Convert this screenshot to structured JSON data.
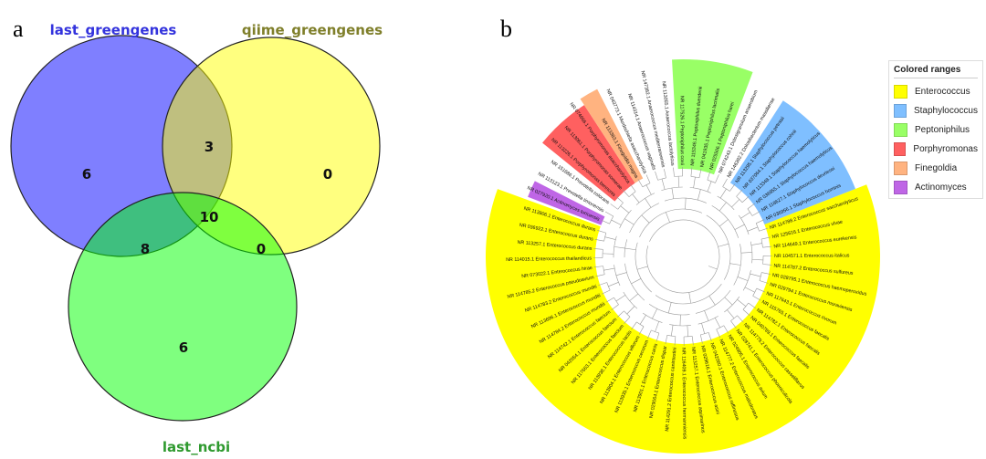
{
  "panel_a": {
    "letter": "a",
    "sets": [
      {
        "name": "last_greengenes",
        "color": "#0000ff",
        "label_color": "#3333dd"
      },
      {
        "name": "qiime_greengenes",
        "color": "#ffff00",
        "label_color": "#7f7f2a"
      },
      {
        "name": "last_ncbi",
        "color": "#00ff00",
        "label_color": "#2f9a2f"
      }
    ],
    "regions": {
      "last_greengenes_only": "6",
      "qiime_greengenes_only": "0",
      "last_ncbi_only": "6",
      "last_greengenes_qiime_greengenes": "3",
      "last_greengenes_last_ncbi": "8",
      "qiime_greengenes_last_ncbi": "0",
      "all_three": "10"
    }
  },
  "panel_b": {
    "letter": "b",
    "legend": {
      "title": "Colored ranges",
      "items": [
        {
          "label": "Enterococcus",
          "color": "#ffff00"
        },
        {
          "label": "Staphylococcus",
          "color": "#7fbfff"
        },
        {
          "label": "Peptoniphilus",
          "color": "#99ff66"
        },
        {
          "label": "Porphyromonas",
          "color": "#ff6060"
        },
        {
          "label": "Finegoldia",
          "color": "#ffb380"
        },
        {
          "label": "Actinomyces",
          "color": "#bf66e6"
        }
      ]
    },
    "leaves": [
      {
        "label": "NR 027920.1 Actinomyces turicensis",
        "group": 5
      },
      {
        "label": "NR 113123.1 Prevotella timonensis",
        "group": -1
      },
      {
        "label": "NR 151686.1 Prevotella colorans",
        "group": -1
      },
      {
        "label": "NR 113226.1 Porphyromonas bennonis",
        "group": 3
      },
      {
        "label": "NR 113061.1 Porphyromonas somerae",
        "group": 3
      },
      {
        "label": "NR 074666.1 Porphyromonas asaccharolytica",
        "group": 3
      },
      {
        "label": "NR 113383.1 Finegoldia magna",
        "group": 4
      },
      {
        "label": "NR 043773.1 Murdochiella asaccharolytica",
        "group": -1
      },
      {
        "label": "NR 114314.1 Anaerococcus vaginalis",
        "group": -1
      },
      {
        "label": "NR 147382.1 Anaerococcus mediterraneensis",
        "group": -1
      },
      {
        "label": "NR 113055.1 Anaerococcus lactolyticus",
        "group": -1
      },
      {
        "label": "NR 117526.1 Peptoniphilus coxii",
        "group": 2
      },
      {
        "label": "NR 115346.1 Peptoniphilus duerdenii",
        "group": 2
      },
      {
        "label": "NR 041935.1 Peptoniphilus lacrimalis",
        "group": 2
      },
      {
        "label": "NR 025506.1 Peptoniphilus harei",
        "group": 2
      },
      {
        "label": "NR 074243.1 Dolosigranulum anaerobium",
        "group": -1
      },
      {
        "label": "NR 146392.2 Dolosibacterium massiliense",
        "group": -1
      },
      {
        "label": "NR 113295.1 Staphylococcus petrasii",
        "group": 1
      },
      {
        "label": "NR 037064.1 Staphylococcus cohnii",
        "group": 1
      },
      {
        "label": "NR 113348.1 Staphylococcus haemolyticus",
        "group": 1
      },
      {
        "label": "NR 036955.1 Staphylococcus haemolyticus",
        "group": 1
      },
      {
        "label": "NR 118627.1 Staphylococcus devriesei",
        "group": 1
      },
      {
        "label": "NR 036956.1 Staphylococcus hominis",
        "group": 1
      },
      {
        "label": "NR 114788.2 Enterococcus saccharolyticus",
        "group": 0
      },
      {
        "label": "NR 125616.1 Enterococcus ulvae",
        "group": 0
      },
      {
        "label": "NR 114649.1 Enterococcus eurekensis",
        "group": 0
      },
      {
        "label": "NR 104571.1 Enterococcus italicus",
        "group": 0
      },
      {
        "label": "NR 114787.2 Enterococcus sulfureus",
        "group": 0
      },
      {
        "label": "NR 028795.1 Enterococcus haemoperoxidus",
        "group": 0
      },
      {
        "label": "NR 029794.1 Enterococcus moraviensis",
        "group": 0
      },
      {
        "label": "NR 117643.1 Enterococcus rivorum",
        "group": 0
      },
      {
        "label": "NR 115765.1 Enterococcus faecalis",
        "group": 0
      },
      {
        "label": "NR 114782.1 Enterococcus faecalis",
        "group": 0
      },
      {
        "label": "NR 040789.1 Enterococcus faecalis",
        "group": 0
      },
      {
        "label": "NR 114779.2 Enterococcus casseliflavus",
        "group": 0
      },
      {
        "label": "NR 028741.1 Enterococcus phoeniculicola",
        "group": 0
      },
      {
        "label": "NR 024905.1 Enterococcus avium",
        "group": 0
      },
      {
        "label": "NR 114777.2 Enterococcus malodoratus",
        "group": 0
      },
      {
        "label": "NR 042060.1 Enterococcus raffinosus",
        "group": 0
      },
      {
        "label": "NR 029616.1 Enterococcus asini",
        "group": 0
      },
      {
        "label": "NR 113257.1 Enterococcus aquimarinus",
        "group": 0
      },
      {
        "label": "NR 116409.1 Enterococcus hermanniensis",
        "group": 0
      },
      {
        "label": "NR 114291.2 Enterococcus canintestini",
        "group": 0
      },
      {
        "label": "NR 029064.1 Enterococcus dispar",
        "group": 0
      },
      {
        "label": "NR 113901.1 Enterococcus canis",
        "group": 0
      },
      {
        "label": "NR 113935.1 Enterococcus cecorum",
        "group": 0
      },
      {
        "label": "NR 113904.1 Enterococcus villorum",
        "group": 0
      },
      {
        "label": "NR 113938.1 Enterococcus lactis",
        "group": 0
      },
      {
        "label": "NR 117663.1 Enterococcus faecium",
        "group": 0
      },
      {
        "label": "NR 042054.1 Enterococcus faecium",
        "group": 0
      },
      {
        "label": "NR 114742.1 Enterococcus faecium",
        "group": 0
      },
      {
        "label": "NR 114784.2 Enterococcus mundtii",
        "group": 0
      },
      {
        "label": "NR 113696.1 Enterococcus mundtii",
        "group": 0
      },
      {
        "label": "NR 114783.2 Enterococcus mundtii",
        "group": 0
      },
      {
        "label": "NR 114785.2 Enterococcus pseudoavium",
        "group": 0
      },
      {
        "label": "NR 073022.1 Enterococcus hirae",
        "group": 0
      },
      {
        "label": "NR 114015.1 Enterococcus thailandicus",
        "group": 0
      },
      {
        "label": "NR 113257.1 Enterococcus durans",
        "group": 0
      },
      {
        "label": "NR 036922.1 Enterococcus durans",
        "group": 0
      },
      {
        "label": "NR 113906.1 Enterococcus durans",
        "group": 0
      }
    ]
  }
}
